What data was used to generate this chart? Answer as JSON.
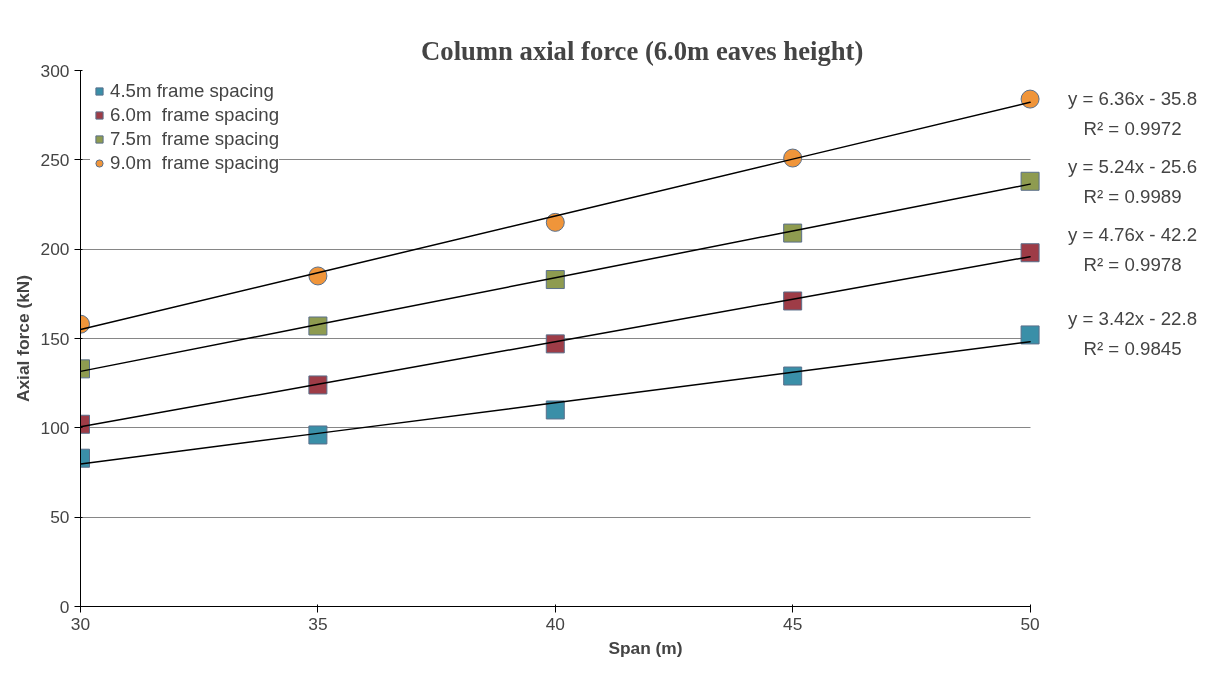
{
  "chart_data": {
    "type": "scatter",
    "title": "Column  axial force (6.0m eaves height)",
    "xlabel": "Span (m)",
    "ylabel": "Axial force (kN)",
    "x": [
      30,
      35,
      40,
      45,
      50
    ],
    "xlim": [
      30,
      50
    ],
    "xticks": [
      30,
      35,
      40,
      45,
      50
    ],
    "ylim": [
      0,
      300
    ],
    "yticks": [
      0,
      50,
      100,
      150,
      200,
      250,
      300
    ],
    "grid": "y",
    "legend": "top left",
    "series": [
      {
        "name": "4.5m frame spacing",
        "color": "#3a8fa8",
        "marker": "square",
        "values": [
          83,
          96,
          110,
          129,
          152
        ]
      },
      {
        "name": "6.0m  frame spacing",
        "color": "#9e3c47",
        "marker": "square",
        "values": [
          102,
          124,
          147,
          171,
          198
        ]
      },
      {
        "name": "7.5m  frame spacing",
        "color": "#8e9b50",
        "marker": "square",
        "values": [
          133,
          157,
          183,
          209,
          238
        ]
      },
      {
        "name": "9.0m  frame spacing",
        "color": "#f0953a",
        "marker": "circle",
        "values": [
          158,
          185,
          215,
          251,
          284
        ]
      },
      {
        "type": "line",
        "color": "#000000",
        "values": [
          79.8,
          96.9,
          114.0,
          131.1,
          148.2
        ]
      },
      {
        "type": "line",
        "color": "#000000",
        "values": [
          100.6,
          124.4,
          148.2,
          172.0,
          195.8
        ]
      },
      {
        "type": "line",
        "color": "#000000",
        "values": [
          131.6,
          157.8,
          184.0,
          210.2,
          236.4
        ]
      },
      {
        "type": "line",
        "color": "#000000",
        "values": [
          155.0,
          186.8,
          218.6,
          250.4,
          282.2
        ]
      }
    ],
    "annotations": [
      "y = 6.36x - 35.8",
      "R² = 0.9972",
      "y = 5.24x - 25.6",
      "R² = 0.9989",
      "y = 4.76x - 42.2",
      "R² = 0.9978",
      "y = 3.42x - 22.8",
      "R² = 0.9845"
    ]
  }
}
